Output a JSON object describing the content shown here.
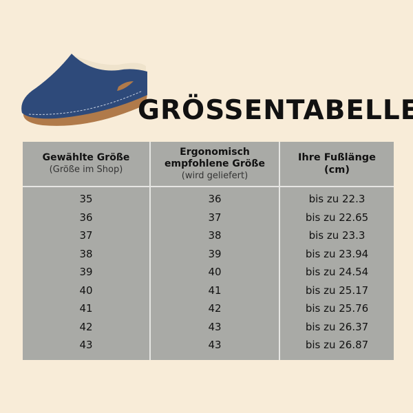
{
  "title": "GRÖSSENTABELLE",
  "image": {
    "icon": "blue-clog-shoe",
    "colors": {
      "upper": "#2e4a7a",
      "sole": "#b07a4a",
      "lining": "#efe3cc"
    }
  },
  "table": {
    "headers": [
      {
        "main": "Gewählte Größe",
        "sub": "(Größe im Shop)"
      },
      {
        "line1": "Ergonomisch",
        "line2": "empfohlene Größe",
        "sub": "(wird geliefert)"
      },
      {
        "line1": "Ihre Fußlänge",
        "line2": "(cm)"
      }
    ],
    "rows": [
      [
        "35",
        "36",
        "bis zu 22.3"
      ],
      [
        "36",
        "37",
        "bis zu 22.65"
      ],
      [
        "37",
        "38",
        "bis zu 23.3"
      ],
      [
        "38",
        "39",
        "bis zu 23.94"
      ],
      [
        "39",
        "40",
        "bis zu 24.54"
      ],
      [
        "40",
        "41",
        "bis zu 25.17"
      ],
      [
        "41",
        "42",
        "bis zu 25.76"
      ],
      [
        "42",
        "43",
        "bis zu 26.37"
      ],
      [
        "43",
        "43",
        "bis zu 26.87"
      ]
    ]
  }
}
